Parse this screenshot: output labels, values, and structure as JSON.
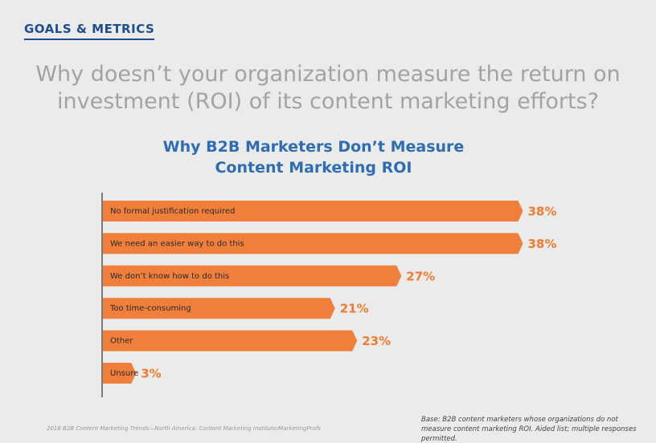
{
  "header": {
    "section": "GOALS & METRICS",
    "question": "Why doesn’t your organization measure the return on investment (ROI) of its content marketing efforts?"
  },
  "chart_data": {
    "type": "bar",
    "orientation": "horizontal",
    "title": "Why B2B Marketers Don’t Measure Content Marketing ROI",
    "categories": [
      "No formal justification required",
      "We need an easier way to do this",
      "We don’t know how to do this",
      "Too time-consuming",
      "Other",
      "Unsure"
    ],
    "values": [
      38,
      38,
      27,
      21,
      23,
      3
    ],
    "value_labels": [
      "38%",
      "38%",
      "27%",
      "21%",
      "23%",
      "3%"
    ],
    "color": "#f07f3c"
  },
  "footer": {
    "source": "2018 B2B Content Marketing Trends—North America: Content Marketing Institute/MarketingProfs",
    "base": "Base: B2B content marketers whose organizations do not measure content marketing ROI. Aided list; multiple responses permitted."
  }
}
